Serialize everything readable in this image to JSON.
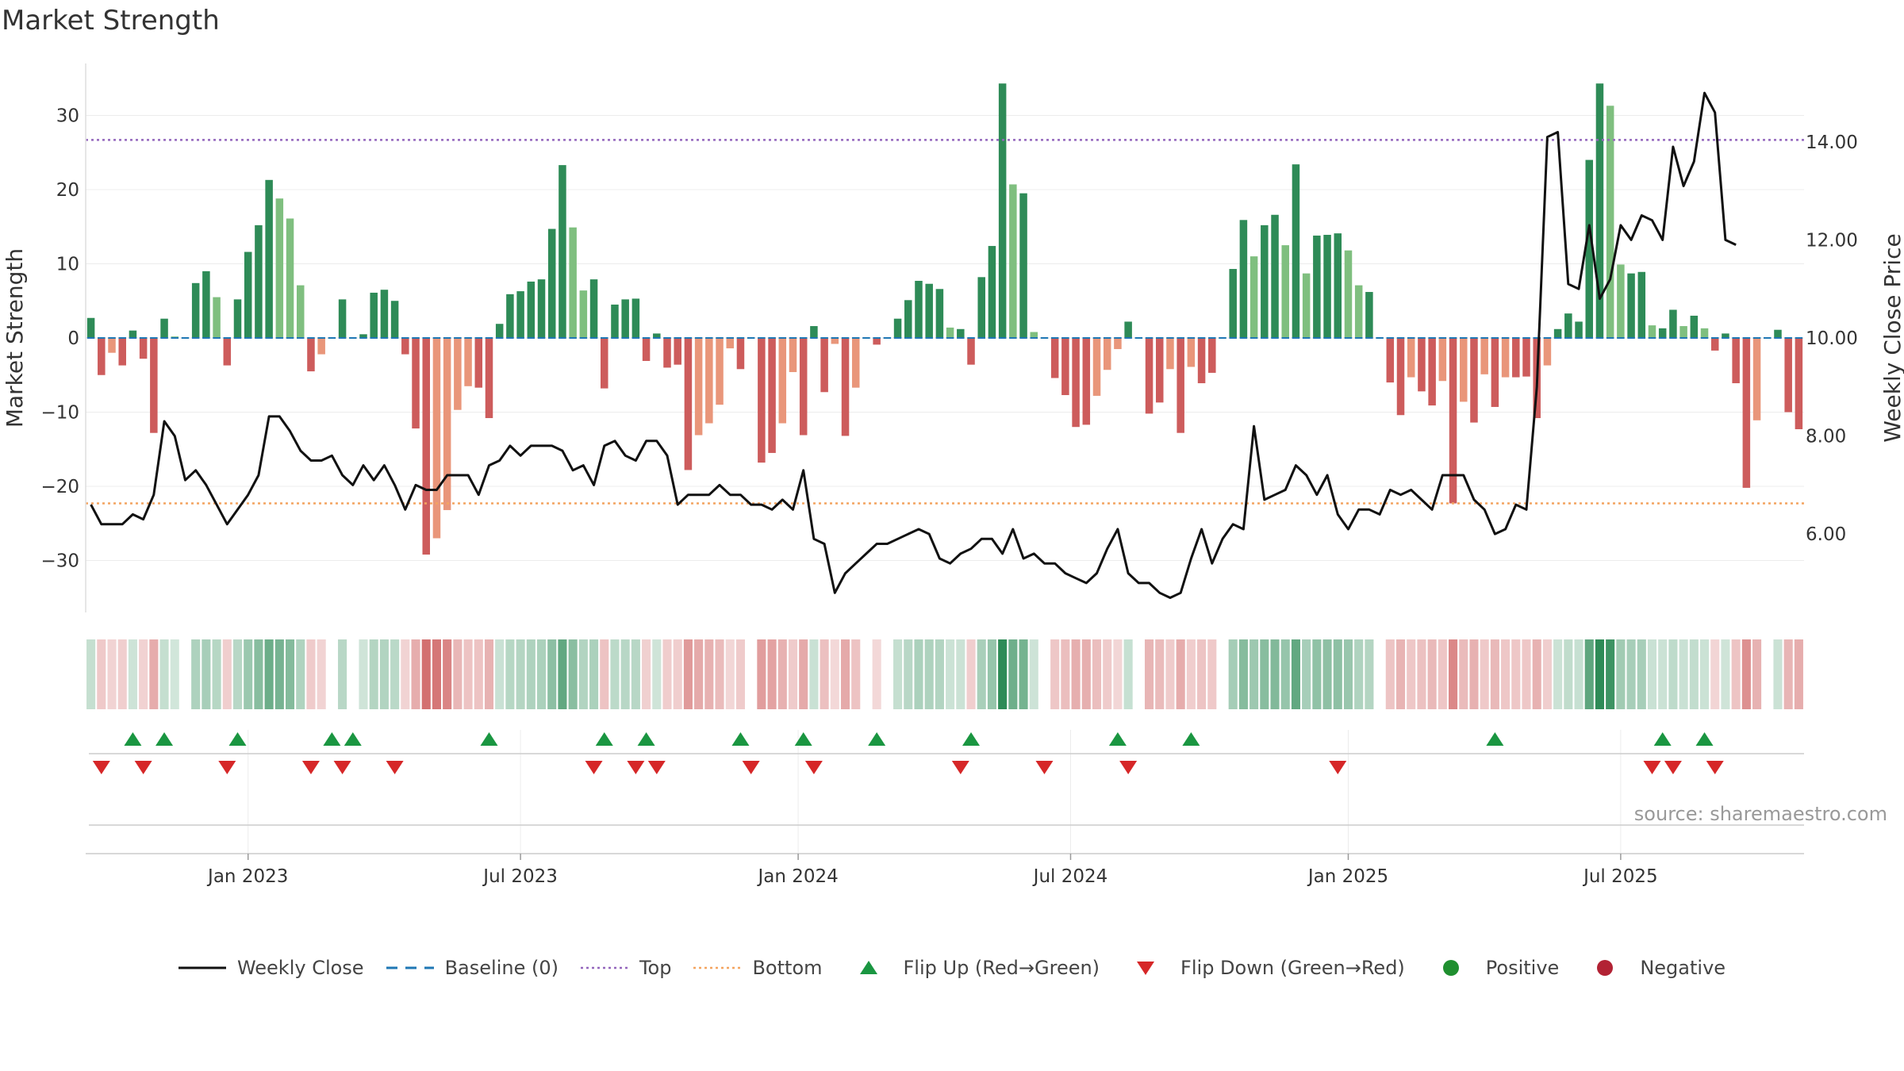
{
  "title": "Market Strength",
  "source": "source: sharemaestro.com",
  "colors": {
    "pos_dark": "#2e8b57",
    "pos_light": "#7fbf7f",
    "neg_dark": "#cd5c5c",
    "neg_light": "#e9967a",
    "close": "#111111",
    "baseline": "#1f77b4",
    "top": "#9467bd",
    "bottom": "#f4a460",
    "flip_up": "#1a9641",
    "flip_down": "#d62728",
    "positive": "#1f8f2f",
    "negative": "#b22234"
  },
  "legend": [
    {
      "key": "close",
      "label": "Weekly Close",
      "icon": "line-solid-icon"
    },
    {
      "key": "baseline",
      "label": "Baseline (0)",
      "icon": "line-dashed-icon"
    },
    {
      "key": "top",
      "label": "Top",
      "icon": "line-dotted-icon"
    },
    {
      "key": "bottom",
      "label": "Bottom",
      "icon": "line-dotted-icon"
    },
    {
      "key": "flip_up",
      "label": "Flip Up (Red→Green)",
      "icon": "triangle-up-icon"
    },
    {
      "key": "flip_down",
      "label": "Flip Down (Green→Red)",
      "icon": "triangle-down-icon"
    },
    {
      "key": "positive",
      "label": "Positive",
      "icon": "circle-icon"
    },
    {
      "key": "negative",
      "label": "Negative",
      "icon": "circle-icon"
    }
  ],
  "chart_data": {
    "type": "bar",
    "title": "Market Strength",
    "ylabel": "Market Strength",
    "y2label": "Weekly Close Price",
    "ylim": [
      -37,
      37
    ],
    "y2lim": [
      4.4,
      15.6
    ],
    "yticks": [
      30,
      20,
      10,
      0,
      -10,
      -20,
      -30
    ],
    "ytick_labels": [
      "30",
      "20",
      "10",
      "0",
      "−10",
      "−20",
      "−30"
    ],
    "y2ticks": [
      14,
      12,
      10,
      8,
      6
    ],
    "y2tick_labels": [
      "14.00",
      "12.00",
      "10.00",
      "8.00",
      "6.00"
    ],
    "xticks": [
      {
        "label": "Jan 2023",
        "week": 15
      },
      {
        "label": "Jul 2023",
        "week": 41
      },
      {
        "label": "Jan 2024",
        "week": 67.5
      },
      {
        "label": "Jul 2024",
        "week": 93.5
      },
      {
        "label": "Jan 2025",
        "week": 120
      },
      {
        "label": "Jul 2025",
        "week": 146
      }
    ],
    "top_line": 26.7,
    "bottom_line": -22.3,
    "baseline": 0,
    "strength": [
      2.7,
      -5,
      -2,
      -3.7,
      1,
      -2.8,
      -12.8,
      2.6,
      0.2,
      0,
      7.4,
      9,
      5.5,
      -3.7,
      5.2,
      11.6,
      15.2,
      21.3,
      18.8,
      16.1,
      7.1,
      -4.5,
      -2.2,
      0,
      5.2,
      0,
      0.5,
      6.1,
      6.5,
      5,
      -2.2,
      -12.2,
      -29.2,
      -27,
      -23.2,
      -9.7,
      -6.5,
      -6.7,
      -10.8,
      1.9,
      5.9,
      6.3,
      7.6,
      7.9,
      14.7,
      23.3,
      14.9,
      6.4,
      7.9,
      -6.8,
      4.5,
      5.2,
      5.3,
      -3.1,
      0.6,
      -4,
      -3.6,
      -17.8,
      -13.1,
      -11.5,
      -9,
      -1.4,
      -4.2,
      0,
      -16.8,
      -15.5,
      -11.5,
      -4.6,
      -13.1,
      1.6,
      -7.3,
      -0.8,
      -13.2,
      -6.7,
      0,
      -0.9,
      0,
      2.6,
      5.1,
      7.7,
      7.3,
      6.6,
      1.4,
      1.2,
      -3.6,
      8.2,
      12.4,
      34.3,
      20.7,
      19.5,
      0.8,
      0,
      -5.4,
      -7.7,
      -12,
      -11.7,
      -7.8,
      -4.3,
      -1.5,
      2.2,
      0,
      -10.2,
      -8.7,
      -4.2,
      -12.8,
      -3.9,
      -6.1,
      -4.7,
      0,
      9.3,
      15.9,
      11,
      15.2,
      16.6,
      12.5,
      23.4,
      8.7,
      13.8,
      13.9,
      14.1,
      11.8,
      7.1,
      6.2,
      0,
      -6,
      -10.4,
      -5.3,
      -7.2,
      -9.1,
      -5.8,
      -22.3,
      -8.6,
      -11.4,
      -4.9,
      -9.3,
      -5.3,
      -5.3,
      -5.2,
      -10.8,
      -3.7,
      1.2,
      3.3,
      2.2,
      24,
      34.3,
      31.3,
      9.9,
      8.7,
      8.9,
      1.7,
      1.3,
      3.8,
      1.6,
      3,
      1.3,
      -1.7,
      0.6,
      -6.1,
      -20.2,
      -11.1,
      0,
      1.1,
      -10,
      -12.3
    ],
    "close": [
      6.6,
      6.2,
      6.2,
      6.2,
      6.4,
      6.3,
      6.8,
      8.3,
      8.0,
      7.1,
      7.3,
      7.0,
      6.6,
      6.2,
      6.5,
      6.8,
      7.2,
      8.4,
      8.4,
      8.1,
      7.7,
      7.5,
      7.5,
      7.6,
      7.2,
      7.0,
      7.4,
      7.1,
      7.4,
      7.0,
      6.5,
      7.0,
      6.9,
      6.9,
      7.2,
      7.2,
      7.2,
      6.8,
      7.4,
      7.5,
      7.8,
      7.6,
      7.8,
      7.8,
      7.8,
      7.7,
      7.3,
      7.4,
      7.0,
      7.8,
      7.9,
      7.6,
      7.5,
      7.9,
      7.9,
      7.6,
      6.6,
      6.8,
      6.8,
      6.8,
      7.0,
      6.8,
      6.8,
      6.6,
      6.6,
      6.5,
      6.7,
      6.5,
      7.3,
      5.9,
      5.8,
      4.8,
      5.2,
      5.4,
      5.6,
      5.8,
      5.8,
      5.9,
      6.0,
      6.1,
      6.0,
      5.5,
      5.4,
      5.6,
      5.7,
      5.9,
      5.9,
      5.6,
      6.1,
      5.5,
      5.6,
      5.4,
      5.4,
      5.2,
      5.1,
      5.0,
      5.2,
      5.7,
      6.1,
      5.2,
      5.0,
      5.0,
      4.8,
      4.7,
      4.8,
      5.5,
      6.1,
      5.4,
      5.9,
      6.2,
      6.1,
      8.2,
      6.7,
      6.8,
      6.9,
      7.4,
      7.2,
      6.8,
      7.2,
      6.4,
      6.1,
      6.5,
      6.5,
      6.4,
      6.9,
      6.8,
      6.9,
      6.7,
      6.5,
      7.2,
      7.2,
      7.2,
      6.7,
      6.5,
      6.0,
      6.1,
      6.6,
      6.5,
      9.0,
      14.1,
      14.2,
      11.1,
      11.0,
      12.3,
      10.8,
      11.2,
      12.3,
      12.0,
      12.5,
      12.4,
      12.0,
      13.9,
      13.1,
      13.6,
      15.0,
      14.6,
      12.0,
      11.9
    ],
    "flip_up_weeks": [
      4,
      7,
      14,
      23,
      25,
      38,
      49,
      53,
      62,
      68,
      75,
      84,
      98,
      105,
      134,
      150,
      154
    ],
    "flip_down_weeks": [
      1,
      5,
      13,
      21,
      24,
      29,
      48,
      52,
      54,
      63,
      69,
      83,
      91,
      99,
      119,
      149,
      151,
      155
    ]
  },
  "axes": {
    "xlabel": ""
  }
}
